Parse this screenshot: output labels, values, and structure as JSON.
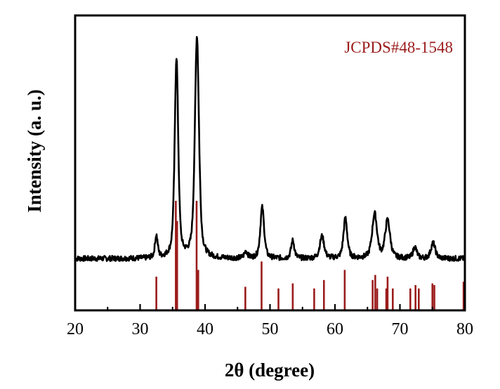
{
  "chart_data": {
    "type": "line",
    "title": "",
    "xlabel": "2θ (degree)",
    "ylabel": "Intensity (a. u.)",
    "xlim": [
      20,
      80
    ],
    "x_ticks": [
      "20",
      "30",
      "40",
      "50",
      "60",
      "70",
      "80"
    ],
    "y_ticks_labeled": false,
    "grid": false,
    "reference_label": "JCPDS#48-1548",
    "colors": {
      "pattern": "#000000",
      "reference": "#9b1c1c",
      "axes": "#000000"
    },
    "series": [
      {
        "kind": "diffraction-pattern",
        "baseline": 0.1,
        "noise": 0.012,
        "peaks": [
          {
            "two_theta": 32.5,
            "intensity": 0.1,
            "fwhm": 0.5
          },
          {
            "two_theta": 35.6,
            "intensity": 0.9,
            "fwhm": 0.65
          },
          {
            "two_theta": 38.75,
            "intensity": 1.0,
            "fwhm": 0.75
          },
          {
            "two_theta": 46.3,
            "intensity": 0.03,
            "fwhm": 0.6
          },
          {
            "two_theta": 48.8,
            "intensity": 0.23,
            "fwhm": 0.7
          },
          {
            "two_theta": 53.5,
            "intensity": 0.08,
            "fwhm": 0.6
          },
          {
            "two_theta": 58.0,
            "intensity": 0.1,
            "fwhm": 0.8
          },
          {
            "two_theta": 61.6,
            "intensity": 0.18,
            "fwhm": 0.7
          },
          {
            "two_theta": 66.1,
            "intensity": 0.2,
            "fwhm": 0.9
          },
          {
            "two_theta": 68.1,
            "intensity": 0.17,
            "fwhm": 0.9
          },
          {
            "two_theta": 72.3,
            "intensity": 0.05,
            "fwhm": 0.7
          },
          {
            "two_theta": 75.1,
            "intensity": 0.07,
            "fwhm": 0.8
          }
        ]
      }
    ],
    "reference_lines": [
      {
        "two_theta": 32.5,
        "relative_intensity": 0.2
      },
      {
        "two_theta": 35.5,
        "relative_intensity": 0.65
      },
      {
        "two_theta": 35.7,
        "relative_intensity": 0.53
      },
      {
        "two_theta": 38.7,
        "relative_intensity": 0.65
      },
      {
        "two_theta": 38.95,
        "relative_intensity": 0.24
      },
      {
        "two_theta": 46.2,
        "relative_intensity": 0.14
      },
      {
        "two_theta": 48.7,
        "relative_intensity": 0.29
      },
      {
        "two_theta": 51.3,
        "relative_intensity": 0.13
      },
      {
        "two_theta": 53.5,
        "relative_intensity": 0.16
      },
      {
        "two_theta": 56.8,
        "relative_intensity": 0.13
      },
      {
        "two_theta": 58.3,
        "relative_intensity": 0.18
      },
      {
        "two_theta": 61.5,
        "relative_intensity": 0.24
      },
      {
        "two_theta": 65.8,
        "relative_intensity": 0.18
      },
      {
        "two_theta": 66.2,
        "relative_intensity": 0.21
      },
      {
        "two_theta": 66.5,
        "relative_intensity": 0.13
      },
      {
        "two_theta": 67.9,
        "relative_intensity": 0.13
      },
      {
        "two_theta": 68.1,
        "relative_intensity": 0.2
      },
      {
        "two_theta": 68.9,
        "relative_intensity": 0.13
      },
      {
        "two_theta": 71.6,
        "relative_intensity": 0.13
      },
      {
        "two_theta": 72.4,
        "relative_intensity": 0.15
      },
      {
        "two_theta": 72.9,
        "relative_intensity": 0.13
      },
      {
        "two_theta": 75.0,
        "relative_intensity": 0.16
      },
      {
        "two_theta": 75.3,
        "relative_intensity": 0.15
      },
      {
        "two_theta": 79.8,
        "relative_intensity": 0.17
      }
    ]
  }
}
